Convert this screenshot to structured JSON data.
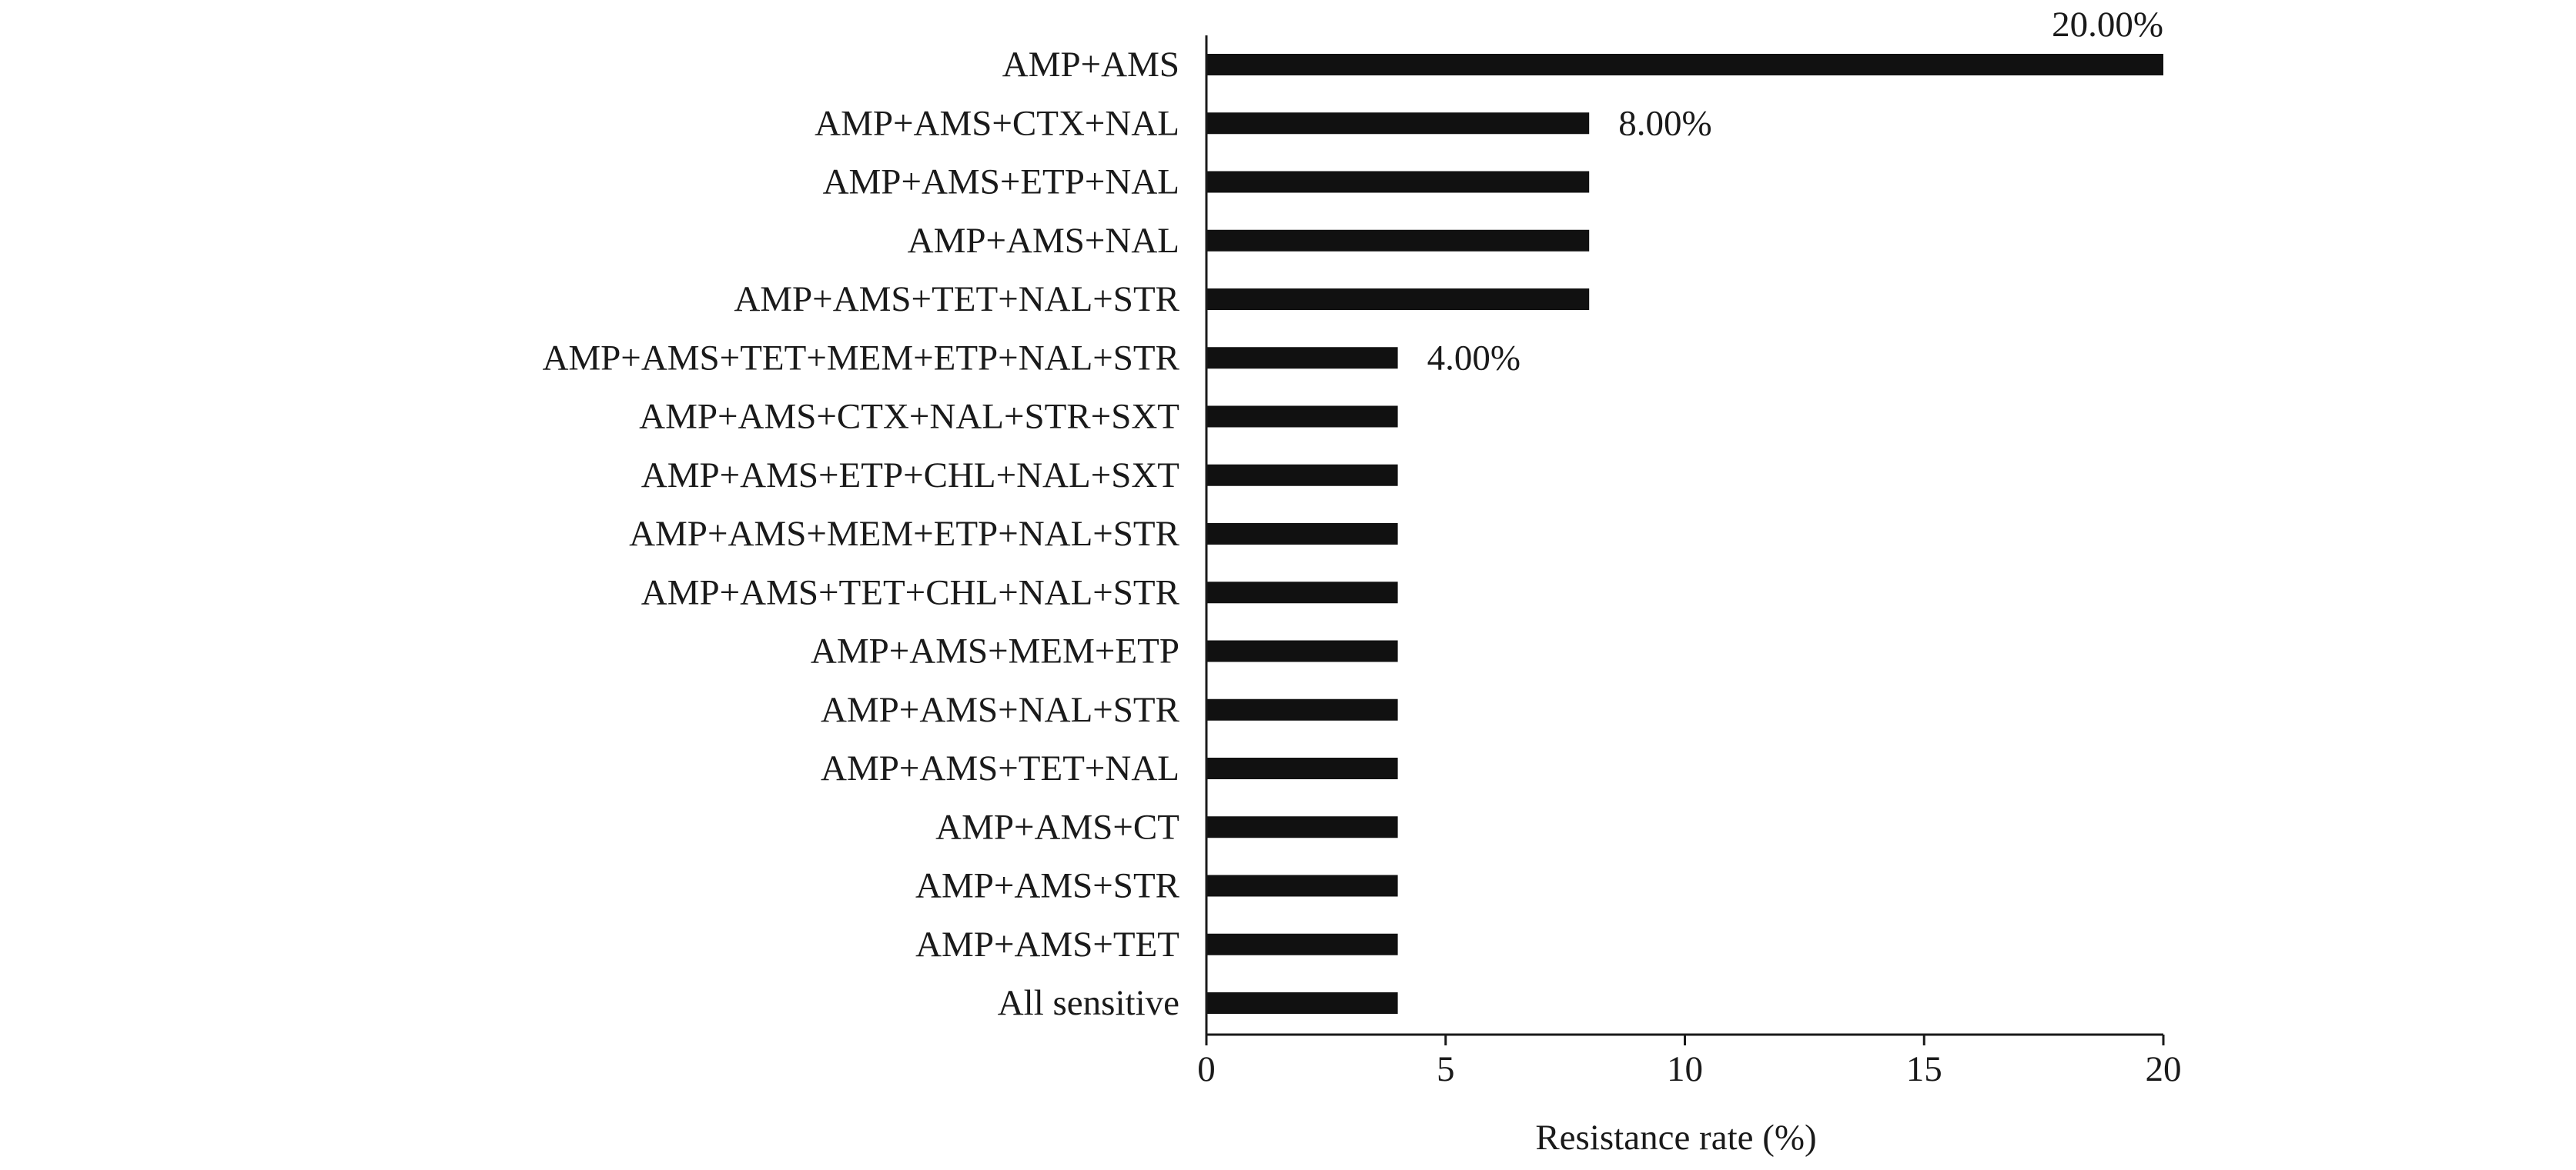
{
  "chart_data": {
    "type": "bar",
    "orientation": "horizontal",
    "categories": [
      "AMP+AMS",
      "AMP+AMS+CTX+NAL",
      "AMP+AMS+ETP+NAL",
      "AMP+AMS+NAL",
      "AMP+AMS+TET+NAL+STR",
      "AMP+AMS+TET+MEM+ETP+NAL+STR",
      "AMP+AMS+CTX+NAL+STR+SXT",
      "AMP+AMS+ETP+CHL+NAL+SXT",
      "AMP+AMS+MEM+ETP+NAL+STR",
      "AMP+AMS+TET+CHL+NAL+STR",
      "AMP+AMS+MEM+ETP",
      "AMP+AMS+NAL+STR",
      "AMP+AMS+TET+NAL",
      "AMP+AMS+CT",
      "AMP+AMS+STR",
      "AMP+AMS+TET",
      "All sensitive"
    ],
    "values": [
      20,
      8,
      8,
      8,
      8,
      4,
      4,
      4,
      4,
      4,
      4,
      4,
      4,
      4,
      4,
      4,
      4
    ],
    "data_labels": [
      {
        "index": 0,
        "text": "20.00%"
      },
      {
        "index": 1,
        "text": "8.00%"
      },
      {
        "index": 5,
        "text": "4.00%"
      }
    ],
    "title": "",
    "xlabel": "Resistance rate (%)",
    "ylabel": "",
    "xlim": [
      0,
      20
    ],
    "xticks": [
      0,
      5,
      10,
      15,
      20
    ],
    "xtick_labels": [
      "0",
      "5",
      "10",
      "15",
      "20"
    ],
    "grid": false,
    "bar_color": "#111111",
    "axis_color": "#1a1a1a"
  }
}
